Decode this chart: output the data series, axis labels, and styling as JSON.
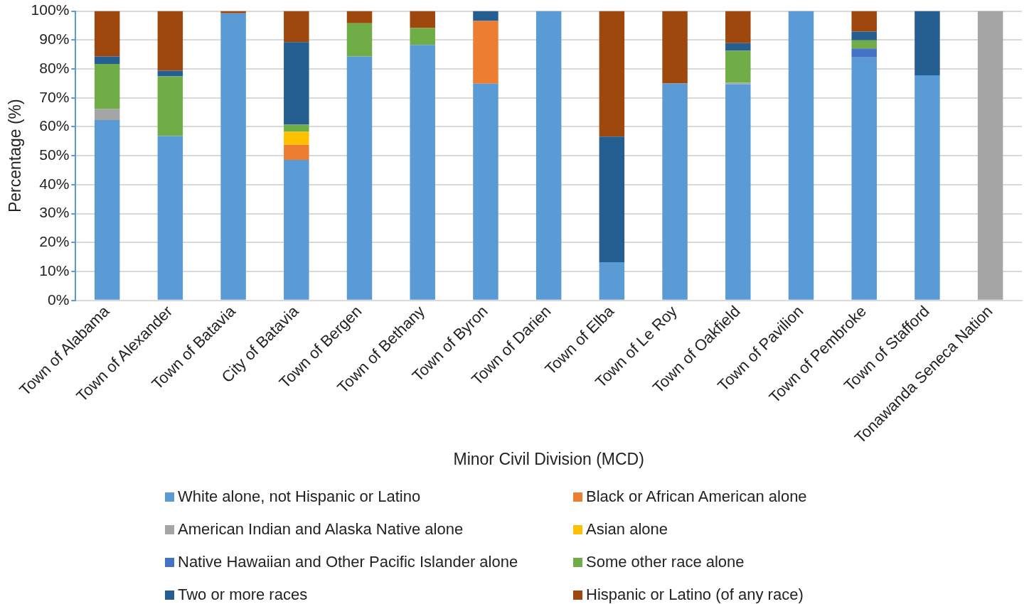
{
  "chart_data": {
    "type": "bar",
    "stacked": true,
    "xlabel": "Minor Civil Division (MCD)",
    "ylabel": "Percentage (%)",
    "categories": [
      "Town of Alabama",
      "Town of Alexander",
      "Town of Batavia",
      "City of Batavia",
      "Town of Bergen",
      "Town of Bethany",
      "Town of Byron",
      "Town of Darien",
      "Town of Elba",
      "Town of Le Roy",
      "Town of Oakfield",
      "Town of Pavilion",
      "Town of Pembroke",
      "Town of Stafford",
      "Tonawanda Seneca Nation"
    ],
    "series": [
      {
        "name": "White alone, not Hispanic or Latino",
        "color": "#5b9bd5",
        "values": [
          62.3,
          56.8,
          99.2,
          48.6,
          84.3,
          88.3,
          74.9,
          100,
          13.2,
          75.0,
          74.7,
          100,
          84.0,
          77.8,
          0
        ]
      },
      {
        "name": "Black or African American alone",
        "color": "#ed7d31",
        "values": [
          0,
          0,
          0,
          5.2,
          0,
          0,
          21.7,
          0,
          0,
          0,
          0,
          0,
          0,
          0,
          0
        ]
      },
      {
        "name": "American Indian and Alaska Native alone",
        "color": "#a5a5a5",
        "values": [
          3.9,
          0,
          0,
          0,
          0,
          0,
          0,
          0,
          0,
          0,
          0.5,
          0,
          0,
          0,
          100
        ]
      },
      {
        "name": "Asian alone",
        "color": "#ffc000",
        "values": [
          0,
          0,
          0,
          4.5,
          0,
          0,
          0,
          0,
          0,
          0,
          0,
          0,
          0,
          0,
          0
        ]
      },
      {
        "name": "Native Hawaiian and Other Pacific Islander alone",
        "color": "#4472c4",
        "values": [
          0,
          0,
          0,
          0,
          0,
          0,
          0,
          0,
          0,
          0,
          0,
          0,
          3.1,
          0,
          0
        ]
      },
      {
        "name": "Some other race alone",
        "color": "#70ad47",
        "values": [
          15.5,
          20.6,
          0,
          2.4,
          11.5,
          5.8,
          0,
          0,
          0,
          0,
          11.1,
          0,
          2.8,
          0,
          0
        ]
      },
      {
        "name": "Two or more races",
        "color": "#255e91",
        "values": [
          2.6,
          2.0,
          0,
          28.6,
          0,
          0,
          3.4,
          0,
          43.4,
          0,
          2.6,
          0,
          3.0,
          22.2,
          0
        ]
      },
      {
        "name": "Hispanic or Latino (of any race)",
        "color": "#9e480e",
        "values": [
          15.7,
          20.6,
          0.8,
          10.7,
          4.2,
          5.9,
          0,
          0,
          43.4,
          25.0,
          11.1,
          0,
          7.1,
          0,
          0
        ]
      }
    ],
    "ylim": [
      0,
      100
    ],
    "yticks": [
      {
        "value": 0,
        "label": "0%"
      },
      {
        "value": 10,
        "label": "10%"
      },
      {
        "value": 20,
        "label": "20%"
      },
      {
        "value": 30,
        "label": "30%"
      },
      {
        "value": 40,
        "label": "40%"
      },
      {
        "value": 50,
        "label": "50%"
      },
      {
        "value": 60,
        "label": "60%"
      },
      {
        "value": 70,
        "label": "70%"
      },
      {
        "value": 80,
        "label": "80%"
      },
      {
        "value": 90,
        "label": "90%"
      },
      {
        "value": 100,
        "label": "100%"
      }
    ],
    "grid": "y",
    "legend": "bottom"
  }
}
